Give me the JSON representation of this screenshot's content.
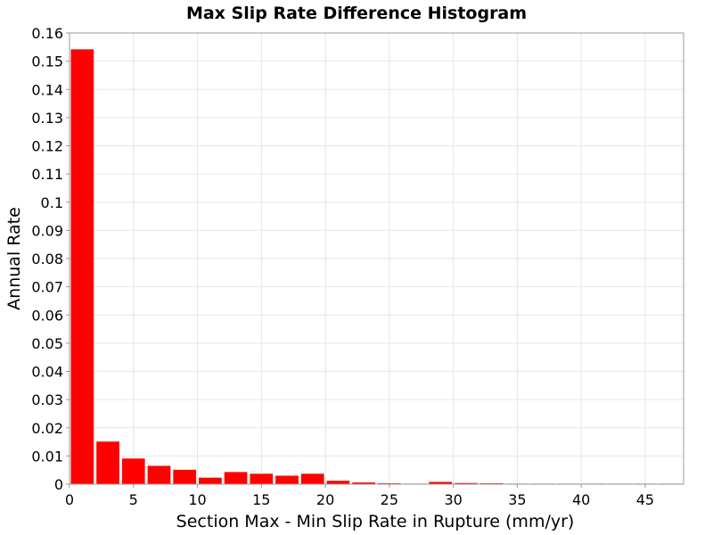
{
  "chart_data": {
    "type": "bar",
    "title": "Max Slip Rate Difference Histogram",
    "xlabel": "Section Max - Min Slip Rate in Rupture (mm/yr)",
    "ylabel": "Annual Rate",
    "xlim": [
      0,
      48
    ],
    "ylim": [
      0,
      0.16
    ],
    "x_ticks": [
      0,
      5,
      10,
      15,
      20,
      25,
      30,
      35,
      40,
      45
    ],
    "y_ticks": [
      0,
      0.01,
      0.02,
      0.03,
      0.04,
      0.05,
      0.06,
      0.07,
      0.08,
      0.09,
      0.1,
      0.11,
      0.12,
      0.13,
      0.14,
      0.15,
      0.16
    ],
    "x_tick_labels": [
      "0",
      "5",
      "10",
      "15",
      "20",
      "25",
      "30",
      "35",
      "40",
      "45"
    ],
    "y_tick_labels": [
      "0",
      "0.01",
      "0.02",
      "0.03",
      "0.04",
      "0.05",
      "0.06",
      "0.07",
      "0.08",
      "0.09",
      "0.1",
      "0.11",
      "0.12",
      "0.13",
      "0.14",
      "0.15",
      "0.16"
    ],
    "bin_width": 2,
    "bin_centers": [
      1,
      3,
      5,
      7,
      9,
      11,
      13,
      15,
      17,
      19,
      21,
      23,
      25,
      27,
      29,
      31,
      33,
      35,
      37,
      39,
      41,
      43,
      45,
      47
    ],
    "values": [
      0.1542,
      0.0151,
      0.0091,
      0.0065,
      0.0051,
      0.0023,
      0.0043,
      0.0037,
      0.003,
      0.0037,
      0.0012,
      0.0006,
      0.0003,
      0.0001,
      0.0008,
      0.0004,
      0.0003,
      0.0001,
      0.0001,
      0.0001,
      0.0002,
      0.0001,
      0.0001,
      0.0001
    ],
    "bar_color": "#ff0000",
    "grid": true
  }
}
